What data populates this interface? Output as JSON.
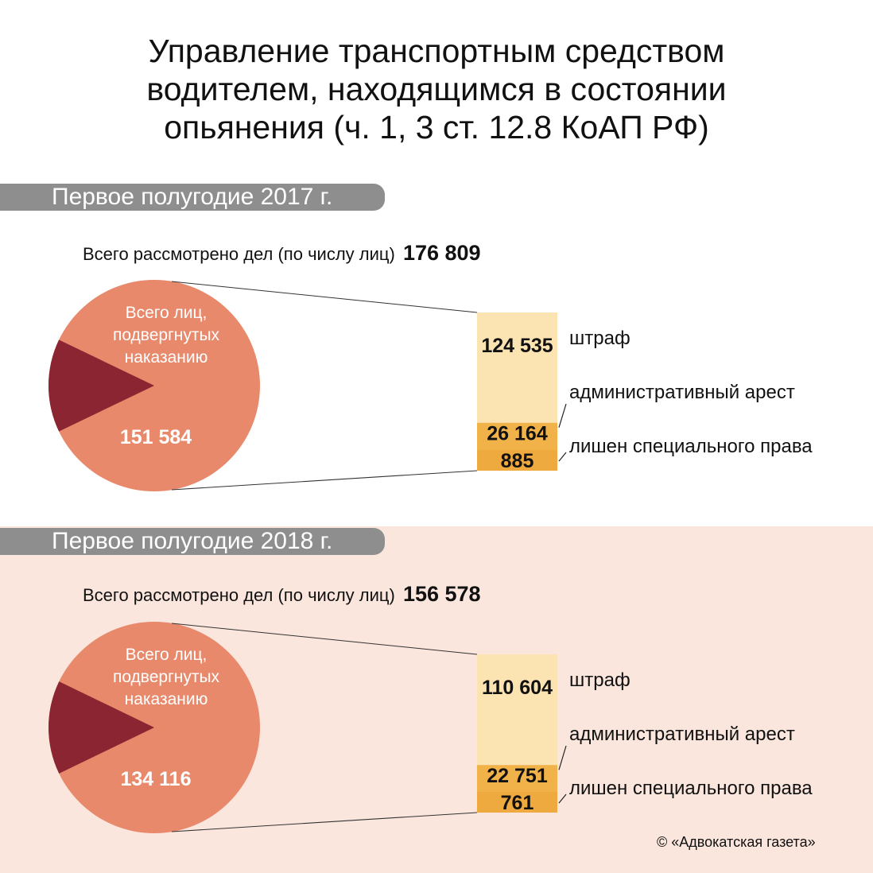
{
  "title_lines": [
    "Управление транспортным средством",
    "водителем, находящимся в состоянии",
    "опьянения (ч. 1, 3 ст. 12.8 КоАП РФ)"
  ],
  "colors": {
    "pie_main": "#e8896b",
    "pie_slice": "#8b2532",
    "bar_fine": "#fbe3b2",
    "bar_arrest": "#f1b349",
    "bar_deprived": "#eea93f",
    "tab": "#8e8e8e",
    "panel_bg": "#fbe6dd"
  },
  "total_label": "Всего рассмотрено дел (по числу лиц)",
  "pie_label_lines": [
    "Всего лиц,",
    "подвергнутых",
    "наказанию"
  ],
  "category_labels": [
    "штраф",
    "административный арест",
    "лишен специального права"
  ],
  "copyright": "© «Адвокатская газета»",
  "chart_data": [
    {
      "type": "bar",
      "period": "Первое полугодие 2017 г.",
      "total_cases": 176809,
      "total_cases_label": "176 809",
      "punished": 151584,
      "punished_label": "151 584",
      "categories": [
        "штраф",
        "административный арест",
        "лишен специального права"
      ],
      "values": [
        124535,
        26164,
        885
      ],
      "value_labels": [
        "124 535",
        "26 164",
        "885"
      ]
    },
    {
      "type": "bar",
      "period": "Первое полугодие 2018 г.",
      "total_cases": 156578,
      "total_cases_label": "156 578",
      "punished": 134116,
      "punished_label": "134 116",
      "categories": [
        "штраф",
        "административный арест",
        "лишен специального права"
      ],
      "values": [
        110604,
        22751,
        761
      ],
      "value_labels": [
        "110 604",
        "22 751",
        "761"
      ]
    }
  ]
}
